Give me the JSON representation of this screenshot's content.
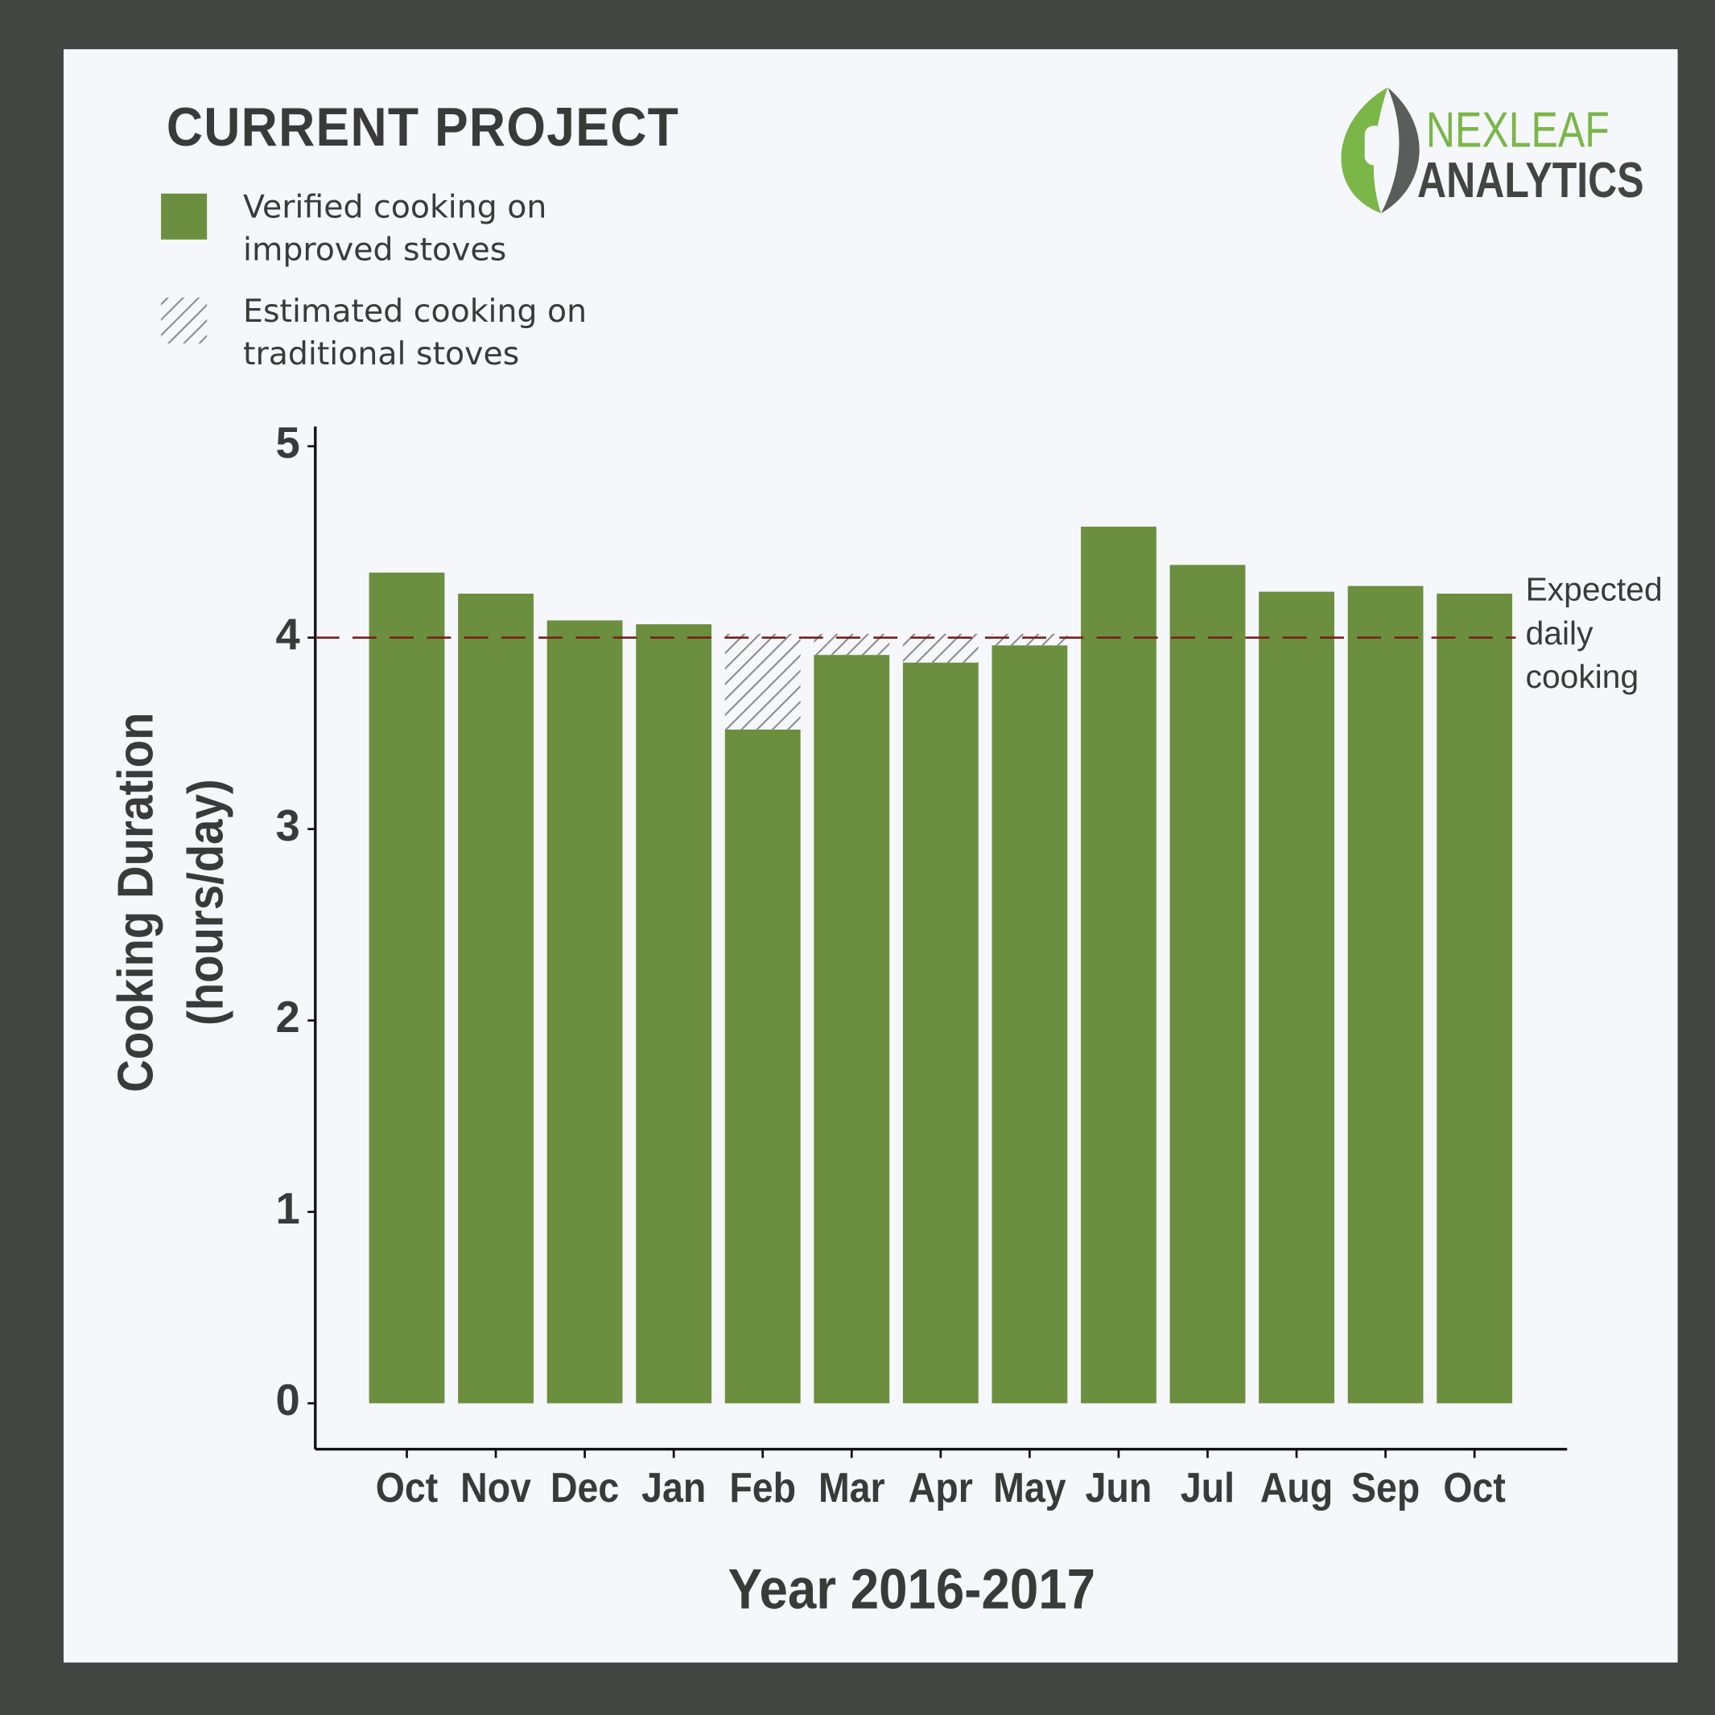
{
  "chart_data": {
    "type": "bar",
    "stacked": true,
    "title": "CURRENT PROJECT",
    "logo": [
      "NEXLEAF",
      "ANALYTICS"
    ],
    "xlabel": "Year 2016-2017",
    "ylabel": [
      "Cooking Duration",
      "(hours/day)"
    ],
    "categories": [
      "Oct",
      "Nov",
      "Dec",
      "Jan",
      "Feb",
      "Mar",
      "Apr",
      "May",
      "Jun",
      "Jul",
      "Aug",
      "Sep",
      "Oct"
    ],
    "series": [
      {
        "name": "Verified cooking on improved stoves",
        "color": "#6b8f3e",
        "hatch": false,
        "values": [
          4.34,
          4.23,
          4.09,
          4.07,
          3.52,
          3.91,
          3.87,
          3.96,
          4.58,
          4.38,
          4.24,
          4.27,
          4.23
        ]
      },
      {
        "name": "Estimated cooking on traditional stoves",
        "color": "#9a9a9a",
        "hatch": true,
        "values": [
          null,
          null,
          null,
          null,
          0.5,
          0.11,
          0.15,
          0.06,
          null,
          null,
          null,
          null,
          null
        ]
      }
    ],
    "reference_line": {
      "value": 4,
      "color": "#7a1f1f",
      "label": [
        "Expected",
        "daily",
        "cooking"
      ]
    },
    "ylim": [
      0,
      5
    ],
    "yticks": [
      0,
      1,
      2,
      3,
      4,
      5
    ],
    "legend": "top-left"
  }
}
